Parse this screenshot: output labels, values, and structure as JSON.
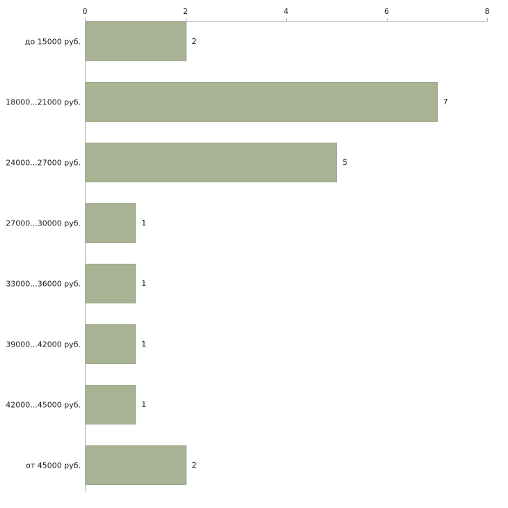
{
  "chart_data": {
    "type": "bar",
    "orientation": "horizontal",
    "title": "",
    "xlabel": "",
    "ylabel": "",
    "categories": [
      "до 15000 руб.",
      "18000...21000 руб.",
      "24000...27000 руб.",
      "27000...30000 руб.",
      "33000...36000 руб.",
      "39000...42000 руб.",
      "42000...45000 руб.",
      "от 45000 руб."
    ],
    "values": [
      2,
      7,
      5,
      1,
      1,
      1,
      1,
      2
    ],
    "value_labels": [
      "2",
      "7",
      "5",
      "1",
      "1",
      "1",
      "1",
      "2"
    ],
    "xlim": [
      0,
      8
    ],
    "xticks": [
      0,
      2,
      4,
      6,
      8
    ],
    "xtick_labels": [
      "0",
      "2",
      "4",
      "6",
      "8"
    ],
    "axis_position": "top",
    "grid": false,
    "legend": "none",
    "colors": {
      "bar_fill": "#a8b394",
      "bar_border": "#9aa685",
      "axis_line": "#b3b3b3",
      "tick_label": "#1a1a1a",
      "category_label": "#1a1a1a",
      "value_label": "#1a1a1a",
      "background": "#ffffff"
    }
  }
}
